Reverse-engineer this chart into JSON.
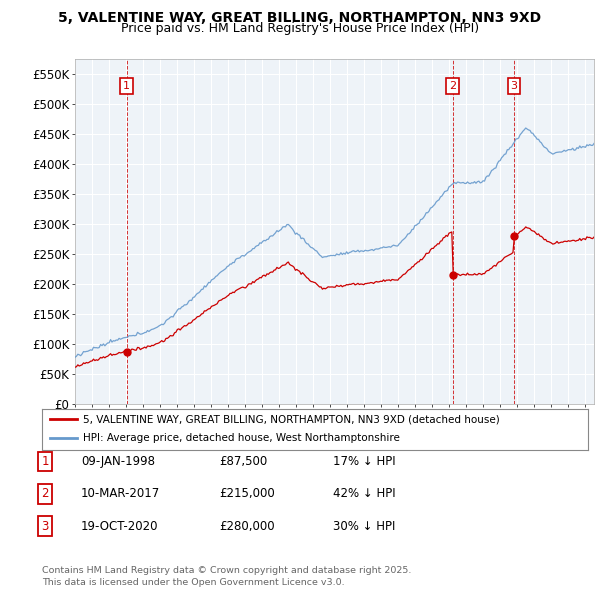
{
  "title": "5, VALENTINE WAY, GREAT BILLING, NORTHAMPTON, NN3 9XD",
  "subtitle": "Price paid vs. HM Land Registry's House Price Index (HPI)",
  "ylim": [
    0,
    575000
  ],
  "yticks": [
    0,
    50000,
    100000,
    150000,
    200000,
    250000,
    300000,
    350000,
    400000,
    450000,
    500000,
    550000
  ],
  "ytick_labels": [
    "£0",
    "£50K",
    "£100K",
    "£150K",
    "£200K",
    "£250K",
    "£300K",
    "£350K",
    "£400K",
    "£450K",
    "£500K",
    "£550K"
  ],
  "sale_prices": [
    87500,
    215000,
    280000
  ],
  "sale_labels": [
    "1",
    "2",
    "3"
  ],
  "sale_year_nums": [
    1998.03,
    2017.19,
    2020.8
  ],
  "sale_info": [
    {
      "label": "1",
      "date": "09-JAN-1998",
      "price": "£87,500",
      "hpi": "17% ↓ HPI"
    },
    {
      "label": "2",
      "date": "10-MAR-2017",
      "price": "£215,000",
      "hpi": "42% ↓ HPI"
    },
    {
      "label": "3",
      "date": "19-OCT-2020",
      "price": "£280,000",
      "hpi": "30% ↓ HPI"
    }
  ],
  "legend_line1": "5, VALENTINE WAY, GREAT BILLING, NORTHAMPTON, NN3 9XD (detached house)",
  "legend_line2": "HPI: Average price, detached house, West Northamptonshire",
  "footer": "Contains HM Land Registry data © Crown copyright and database right 2025.\nThis data is licensed under the Open Government Licence v3.0.",
  "line_color_red": "#cc0000",
  "line_color_blue": "#6699cc",
  "vline_color": "#cc0000",
  "bg_color": "#ffffff",
  "chart_bg": "#eef3f8",
  "grid_color": "#ffffff",
  "title_fontsize": 10,
  "subtitle_fontsize": 9,
  "tick_fontsize": 8.5
}
